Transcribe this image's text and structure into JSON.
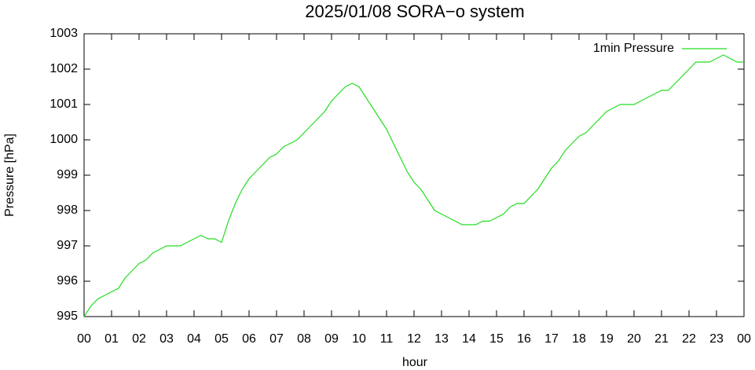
{
  "chart_data": {
    "type": "line",
    "title": "2025/01/08 SORA−o system",
    "x_label": "hour",
    "y_label": "Pressure [hPa]",
    "legend": "top-right",
    "xlim": [
      0,
      24
    ],
    "xticks": [
      {
        "value": 0,
        "label": "00"
      },
      {
        "value": 1,
        "label": "01"
      },
      {
        "value": 2,
        "label": "02"
      },
      {
        "value": 3,
        "label": "03"
      },
      {
        "value": 4,
        "label": "04"
      },
      {
        "value": 5,
        "label": "05"
      },
      {
        "value": 6,
        "label": "06"
      },
      {
        "value": 7,
        "label": "07"
      },
      {
        "value": 8,
        "label": "08"
      },
      {
        "value": 9,
        "label": "09"
      },
      {
        "value": 10,
        "label": "10"
      },
      {
        "value": 11,
        "label": "11"
      },
      {
        "value": 12,
        "label": "12"
      },
      {
        "value": 13,
        "label": "13"
      },
      {
        "value": 14,
        "label": "14"
      },
      {
        "value": 15,
        "label": "15"
      },
      {
        "value": 16,
        "label": "16"
      },
      {
        "value": 17,
        "label": "17"
      },
      {
        "value": 18,
        "label": "18"
      },
      {
        "value": 19,
        "label": "19"
      },
      {
        "value": 20,
        "label": "20"
      },
      {
        "value": 21,
        "label": "21"
      },
      {
        "value": 22,
        "label": "22"
      },
      {
        "value": 23,
        "label": "23"
      },
      {
        "value": 24,
        "label": "00"
      }
    ],
    "ylim": [
      995,
      1003
    ],
    "yticks": [
      995,
      996,
      997,
      998,
      999,
      1000,
      1001,
      1002,
      1003
    ],
    "x": [
      0,
      0.25,
      0.5,
      0.75,
      1,
      1.25,
      1.5,
      1.75,
      2,
      2.25,
      2.5,
      2.75,
      3,
      3.25,
      3.5,
      3.75,
      4,
      4.25,
      4.5,
      4.75,
      5,
      5.25,
      5.5,
      5.75,
      6,
      6.25,
      6.5,
      6.75,
      7,
      7.25,
      7.5,
      7.75,
      8,
      8.25,
      8.5,
      8.75,
      9,
      9.25,
      9.5,
      9.75,
      10,
      10.25,
      10.5,
      10.75,
      11,
      11.25,
      11.5,
      11.75,
      12,
      12.25,
      12.5,
      12.75,
      13,
      13.25,
      13.5,
      13.75,
      14,
      14.25,
      14.5,
      14.75,
      15,
      15.25,
      15.5,
      15.75,
      16,
      16.25,
      16.5,
      16.75,
      17,
      17.25,
      17.5,
      17.75,
      18,
      18.25,
      18.5,
      18.75,
      19,
      19.25,
      19.5,
      19.75,
      20,
      20.25,
      20.5,
      20.75,
      21,
      21.25,
      21.5,
      21.75,
      22,
      22.25,
      22.5,
      22.75,
      23,
      23.25,
      23.5,
      23.75,
      24
    ],
    "series": [
      {
        "name": "1min Pressure",
        "color": "#22dd22",
        "values": [
          995.0,
          995.3,
          995.5,
          995.6,
          995.7,
          995.8,
          996.1,
          996.3,
          996.5,
          996.6,
          996.8,
          996.9,
          997.0,
          997.0,
          997.0,
          997.1,
          997.2,
          997.3,
          997.2,
          997.2,
          997.1,
          997.7,
          998.2,
          998.6,
          998.9,
          999.1,
          999.3,
          999.5,
          999.6,
          999.8,
          999.9,
          1000.0,
          1000.2,
          1000.4,
          1000.6,
          1000.8,
          1001.1,
          1001.3,
          1001.5,
          1001.6,
          1001.5,
          1001.2,
          1000.9,
          1000.6,
          1000.3,
          999.9,
          999.5,
          999.1,
          998.8,
          998.6,
          998.3,
          998.0,
          997.9,
          997.8,
          997.7,
          997.6,
          997.6,
          997.6,
          997.7,
          997.7,
          997.8,
          997.9,
          998.1,
          998.2,
          998.2,
          998.4,
          998.6,
          998.9,
          999.2,
          999.4,
          999.7,
          999.9,
          1000.1,
          1000.2,
          1000.4,
          1000.6,
          1000.8,
          1000.9,
          1001.0,
          1001.0,
          1001.0,
          1001.1,
          1001.2,
          1001.3,
          1001.4,
          1001.4,
          1001.6,
          1001.8,
          1002.0,
          1002.2,
          1002.2,
          1002.2,
          1002.3,
          1002.4,
          1002.3,
          1002.2,
          1002.2
        ]
      }
    ]
  }
}
